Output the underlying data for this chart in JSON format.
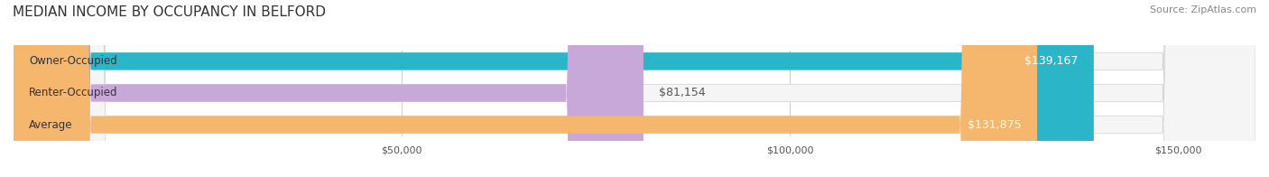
{
  "title": "MEDIAN INCOME BY OCCUPANCY IN BELFORD",
  "source": "Source: ZipAtlas.com",
  "categories": [
    "Owner-Occupied",
    "Renter-Occupied",
    "Average"
  ],
  "values": [
    139167,
    81154,
    131875
  ],
  "labels": [
    "$139,167",
    "$81,154",
    "$131,875"
  ],
  "bar_colors": [
    "#2bb5c8",
    "#c8a8d8",
    "#f5b76e"
  ],
  "bar_bg_color": "#f0f0f0",
  "label_inside": [
    true,
    false,
    true
  ],
  "xlim": [
    0,
    160000
  ],
  "xticks": [
    50000,
    100000,
    150000
  ],
  "xtick_labels": [
    "$50,000",
    "$100,000",
    "$150,000"
  ],
  "title_fontsize": 11,
  "source_fontsize": 8,
  "label_fontsize": 9,
  "cat_fontsize": 8.5,
  "background_color": "#ffffff"
}
